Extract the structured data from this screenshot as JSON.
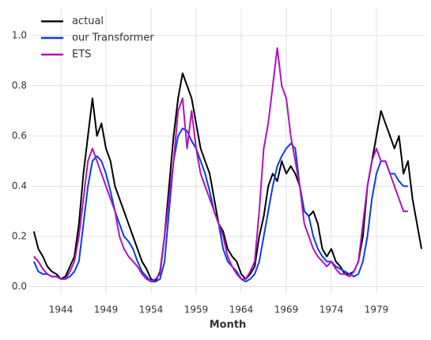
{
  "chart_data": {
    "type": "line",
    "xlabel": "Month",
    "x": [
      1941.0,
      1941.5,
      1942.0,
      1942.5,
      1943.0,
      1943.5,
      1944.0,
      1944.5,
      1945.0,
      1945.5,
      1946.0,
      1946.5,
      1947.0,
      1947.5,
      1948.0,
      1948.5,
      1949.0,
      1949.5,
      1950.0,
      1950.5,
      1951.0,
      1951.5,
      1952.0,
      1952.5,
      1953.0,
      1953.5,
      1954.0,
      1954.5,
      1955.0,
      1955.5,
      1956.0,
      1956.5,
      1957.0,
      1957.5,
      1958.0,
      1958.5,
      1959.0,
      1959.5,
      1960.0,
      1960.5,
      1961.0,
      1961.5,
      1962.0,
      1962.5,
      1963.0,
      1963.5,
      1964.0,
      1964.5,
      1965.0,
      1965.5,
      1966.0,
      1966.5,
      1967.0,
      1967.5,
      1968.0,
      1968.5,
      1969.0,
      1969.5,
      1970.0,
      1970.5,
      1971.0,
      1971.5,
      1972.0,
      1972.5,
      1973.0,
      1973.5,
      1974.0,
      1974.5,
      1975.0,
      1975.5,
      1976.0,
      1976.5,
      1977.0,
      1977.5,
      1978.0,
      1978.5,
      1979.0,
      1979.5,
      1980.0,
      1980.5,
      1981.0,
      1981.5,
      1982.0,
      1982.5,
      1983.0,
      1983.5,
      1984.0
    ],
    "series": [
      {
        "name": "actual",
        "color": "#000000",
        "values": [
          0.22,
          0.15,
          0.12,
          0.08,
          0.06,
          0.05,
          0.03,
          0.04,
          0.08,
          0.12,
          0.25,
          0.45,
          0.6,
          0.75,
          0.6,
          0.65,
          0.55,
          0.5,
          0.4,
          0.35,
          0.3,
          0.25,
          0.2,
          0.15,
          0.1,
          0.07,
          0.03,
          0.02,
          0.06,
          0.2,
          0.4,
          0.6,
          0.75,
          0.85,
          0.8,
          0.75,
          0.65,
          0.55,
          0.5,
          0.45,
          0.35,
          0.25,
          0.22,
          0.15,
          0.12,
          0.1,
          0.05,
          0.03,
          0.05,
          0.08,
          0.2,
          0.28,
          0.4,
          0.45,
          0.42,
          0.5,
          0.45,
          0.48,
          0.45,
          0.4,
          0.3,
          0.28,
          0.3,
          0.25,
          0.15,
          0.12,
          0.15,
          0.1,
          0.08,
          0.05,
          0.05,
          0.06,
          0.1,
          0.2,
          0.4,
          0.5,
          0.6,
          0.7,
          0.65,
          0.6,
          0.55,
          0.6,
          0.45,
          0.5,
          0.35,
          0.25,
          0.15
        ]
      },
      {
        "name": "our Transformer",
        "color": "#0a3cf0",
        "values": [
          0.1,
          0.06,
          0.05,
          0.05,
          0.04,
          0.04,
          0.03,
          0.03,
          0.04,
          0.06,
          0.1,
          0.25,
          0.4,
          0.5,
          0.52,
          0.5,
          0.45,
          0.38,
          0.3,
          0.25,
          0.2,
          0.18,
          0.15,
          0.1,
          0.06,
          0.04,
          0.02,
          0.02,
          0.03,
          0.1,
          0.3,
          0.5,
          0.6,
          0.63,
          0.62,
          0.58,
          0.55,
          0.5,
          0.45,
          0.38,
          0.3,
          0.25,
          0.15,
          0.1,
          0.08,
          0.06,
          0.03,
          0.02,
          0.03,
          0.05,
          0.1,
          0.2,
          0.3,
          0.4,
          0.48,
          0.52,
          0.55,
          0.57,
          0.55,
          0.4,
          0.3,
          0.28,
          0.2,
          0.15,
          0.12,
          0.1,
          0.1,
          0.08,
          0.07,
          0.06,
          0.05,
          0.04,
          0.05,
          0.1,
          0.2,
          0.35,
          0.45,
          0.5,
          0.5,
          0.45,
          0.45,
          0.42,
          0.4,
          0.4,
          null,
          null,
          null
        ]
      },
      {
        "name": "ETS",
        "color": "#b012c0",
        "values": [
          0.12,
          0.1,
          0.07,
          0.05,
          0.04,
          0.04,
          0.03,
          0.03,
          0.06,
          0.1,
          0.2,
          0.35,
          0.5,
          0.55,
          0.5,
          0.45,
          0.4,
          0.35,
          0.3,
          0.2,
          0.15,
          0.12,
          0.1,
          0.08,
          0.05,
          0.03,
          0.02,
          0.03,
          0.05,
          0.2,
          0.35,
          0.5,
          0.7,
          0.75,
          0.55,
          0.7,
          0.55,
          0.45,
          0.4,
          0.35,
          0.3,
          0.25,
          0.2,
          0.12,
          0.08,
          0.05,
          0.03,
          0.03,
          0.06,
          0.1,
          0.3,
          0.55,
          0.65,
          0.8,
          0.95,
          0.8,
          0.75,
          0.6,
          0.5,
          0.4,
          0.25,
          0.2,
          0.15,
          0.12,
          0.1,
          0.08,
          0.1,
          0.07,
          0.05,
          0.05,
          0.04,
          0.06,
          0.1,
          0.25,
          0.4,
          0.5,
          0.55,
          0.5,
          0.5,
          0.45,
          0.4,
          0.35,
          0.3,
          0.3,
          null,
          null,
          null
        ]
      }
    ],
    "xlim": [
      1940.75,
      1984.35
    ],
    "ylim": [
      -0.03,
      1.11
    ],
    "xticks": [
      1944,
      1949,
      1954,
      1959,
      1964,
      1969,
      1974,
      1979
    ],
    "yticks": [
      {
        "value": 0,
        "label": "0.0"
      },
      {
        "value": 0.2,
        "label": "0.2"
      },
      {
        "value": 0.4,
        "label": "0.4"
      },
      {
        "value": 0.6,
        "label": "0.6"
      },
      {
        "value": 0.8,
        "label": "0.8"
      },
      {
        "value": 1.0,
        "label": "1.0"
      }
    ],
    "grid": true,
    "legend": "upper-left"
  }
}
